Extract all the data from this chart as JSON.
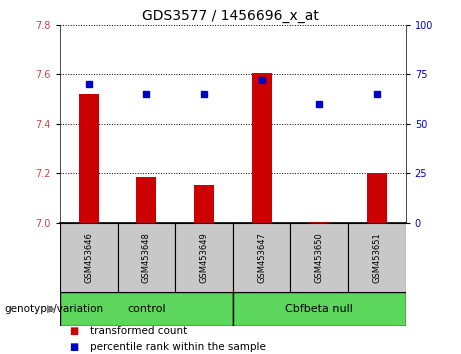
{
  "title": "GDS3577 / 1456696_x_at",
  "samples": [
    "GSM453646",
    "GSM453648",
    "GSM453649",
    "GSM453647",
    "GSM453650",
    "GSM453651"
  ],
  "bar_values": [
    7.52,
    7.185,
    7.155,
    7.605,
    7.005,
    7.2
  ],
  "dot_values": [
    70,
    65,
    65,
    72,
    60,
    65
  ],
  "ylim_left": [
    7.0,
    7.8
  ],
  "ylim_right": [
    0,
    100
  ],
  "yticks_left": [
    7.0,
    7.2,
    7.4,
    7.6,
    7.8
  ],
  "yticks_right": [
    0,
    25,
    50,
    75,
    100
  ],
  "bar_color": "#cc0000",
  "dot_color": "#0000cc",
  "legend_red_label": "transformed count",
  "legend_blue_label": "percentile rank within the sample",
  "group_label": "genotype/variation",
  "group1_label": "control",
  "group2_label": "Cbfbeta null",
  "group_color": "#5cd65c",
  "sample_bg_color": "#c8c8c8",
  "bar_baseline": 7.0,
  "bar_width": 0.35
}
